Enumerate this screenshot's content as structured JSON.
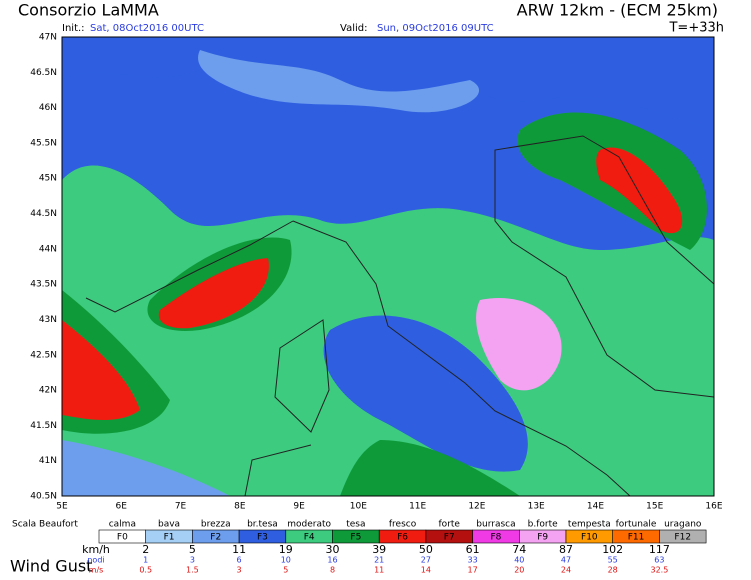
{
  "header": {
    "title": "Consorzio LaMMA",
    "model": "ARW 12km - (ECM 25km)",
    "init_label": "Init.:",
    "init": "Sat, 08Oct2016 00UTC",
    "valid_label": "Valid:",
    "valid": "Sun, 09Oct2016 09UTC",
    "lead": "T=+33h"
  },
  "map": {
    "lat_labels": [
      "47N",
      "46.5N",
      "46N",
      "45.5N",
      "45N",
      "44.5N",
      "44N",
      "43.5N",
      "43N",
      "42.5N",
      "42N",
      "41.5N",
      "41N",
      "40.5N"
    ],
    "lon_labels": [
      "5E",
      "6E",
      "7E",
      "8E",
      "9E",
      "10E",
      "11E",
      "12E",
      "13E",
      "14E",
      "15E",
      "16E"
    ]
  },
  "legend": {
    "title": "Scala Beaufort",
    "classes": [
      {
        "name": "calma",
        "code": "F0",
        "color": "#ffffff"
      },
      {
        "name": "bava",
        "code": "F1",
        "color": "#a6cff5"
      },
      {
        "name": "brezza",
        "code": "F2",
        "color": "#6d9ded"
      },
      {
        "name": "br.tesa",
        "code": "F3",
        "color": "#2f5fe0"
      },
      {
        "name": "moderato",
        "code": "F4",
        "color": "#3ccb7f"
      },
      {
        "name": "tesa",
        "code": "F5",
        "color": "#0f9a3a"
      },
      {
        "name": "fresco",
        "code": "F6",
        "color": "#f01c10"
      },
      {
        "name": "forte",
        "code": "F7",
        "color": "#b41010"
      },
      {
        "name": "burrasca",
        "code": "F8",
        "color": "#f03ae6"
      },
      {
        "name": "b.forte",
        "code": "F9",
        "color": "#f4a2f2"
      },
      {
        "name": "tempesta",
        "code": "F10",
        "color": "#ff9a00"
      },
      {
        "name": "fortunale",
        "code": "F11",
        "color": "#ff6a00"
      },
      {
        "name": "uragano",
        "code": "F12",
        "color": "#b0b0b0"
      }
    ],
    "units": [
      "km/h",
      "nodi",
      "m/s"
    ],
    "kmh": [
      "2",
      "5",
      "11",
      "19",
      "30",
      "39",
      "50",
      "61",
      "74",
      "87",
      "102",
      "117"
    ],
    "nodi": [
      "1",
      "3",
      "6",
      "10",
      "16",
      "21",
      "27",
      "33",
      "40",
      "47",
      "55",
      "63"
    ],
    "ms": [
      "0.5",
      "1.5",
      "3",
      "5",
      "8",
      "11",
      "14",
      "17",
      "20",
      "24",
      "28",
      "32.5"
    ],
    "caption": "Wind Gust"
  }
}
